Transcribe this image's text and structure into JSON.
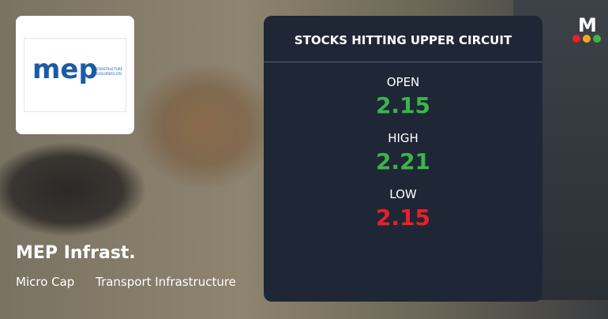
{
  "company": {
    "name": "MEP Infrast.",
    "tags": [
      "Micro Cap",
      "Transport Infrastructure"
    ],
    "logo_text": "mep",
    "logo_subtext": "INFRASTRUCTURE DEVELOPERS LTD"
  },
  "panel": {
    "title": "STOCKS HITTING UPPER CIRCUIT",
    "stats": [
      {
        "label": "OPEN",
        "value": "2.15",
        "color": "#3cb54a"
      },
      {
        "label": "HIGH",
        "value": "2.21",
        "color": "#3cb54a"
      },
      {
        "label": "LOW",
        "value": "2.15",
        "color": "#e8202a"
      }
    ]
  },
  "brand": {
    "letter": "M",
    "dots": [
      "#e8202a",
      "#f5a623",
      "#3cb54a"
    ]
  }
}
